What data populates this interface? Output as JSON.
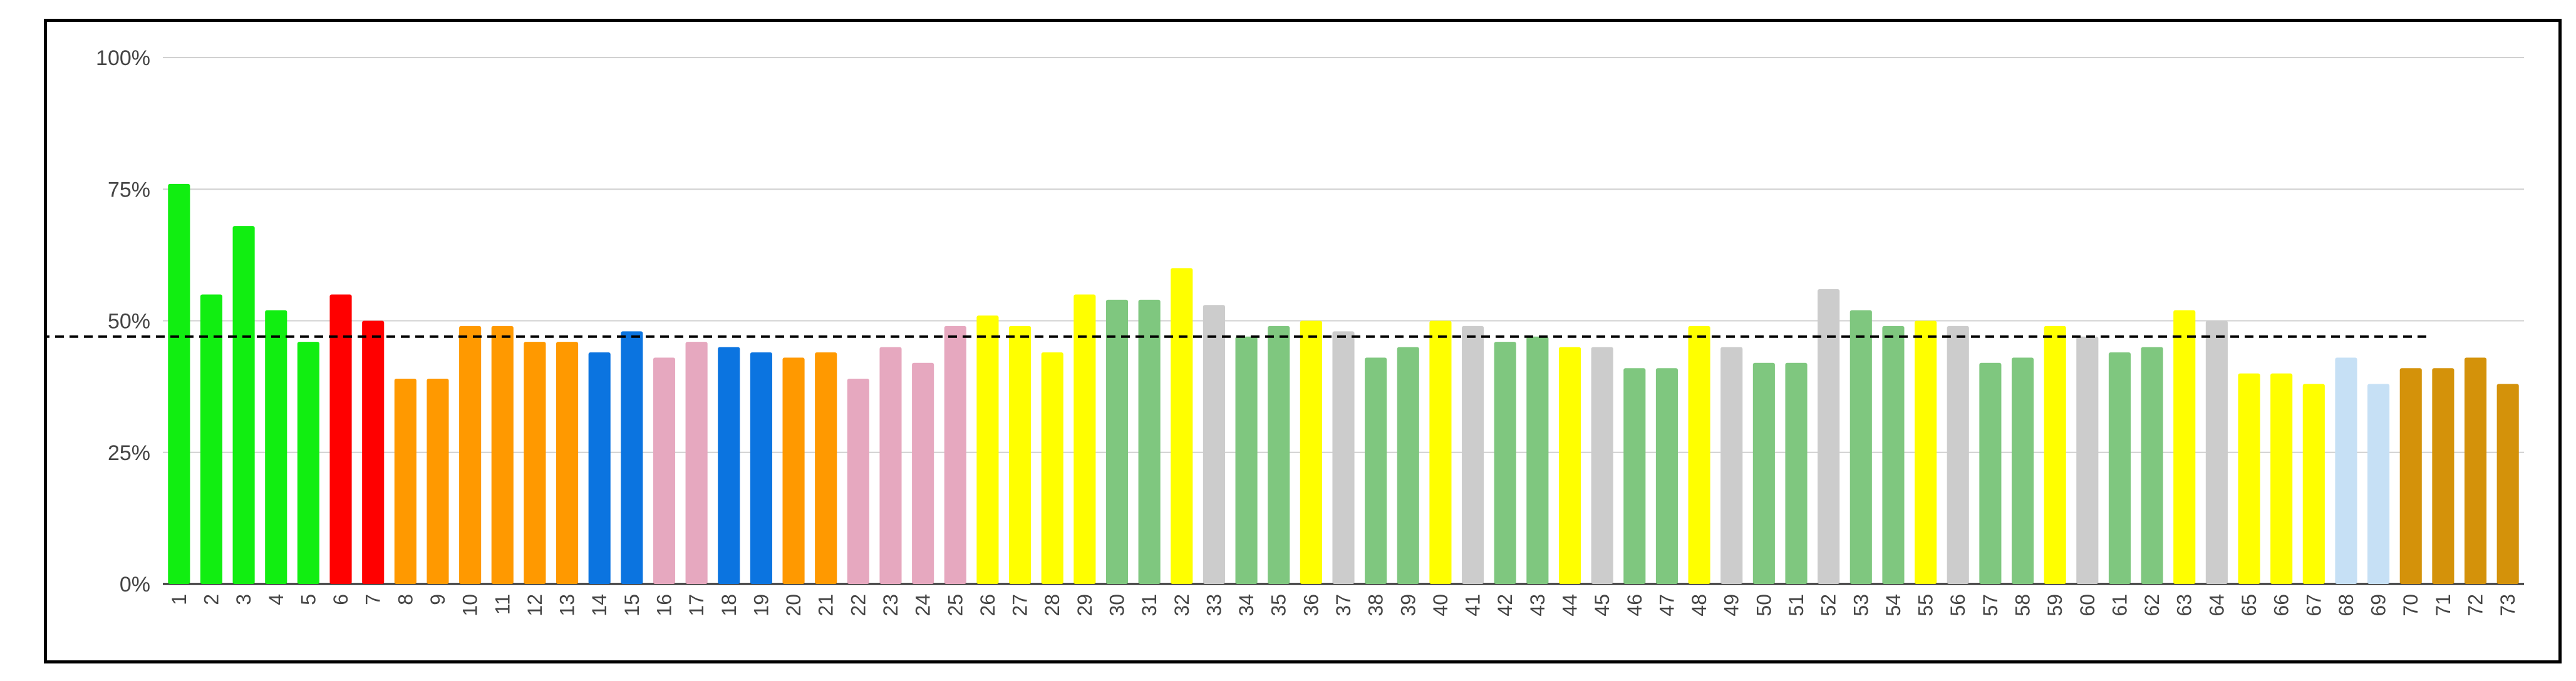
{
  "chart_data": {
    "type": "bar",
    "title": "",
    "xlabel": "",
    "ylabel": "",
    "ylim": [
      0,
      100
    ],
    "yticks": [
      "0%",
      "25%",
      "50%",
      "75%",
      "100%"
    ],
    "grid": true,
    "reference_line": {
      "value": 47,
      "style": "dashed",
      "color": "#000000"
    },
    "categories": [
      "1",
      "2",
      "3",
      "4",
      "5",
      "6",
      "7",
      "8",
      "9",
      "10",
      "11",
      "12",
      "13",
      "14",
      "15",
      "16",
      "17",
      "18",
      "19",
      "20",
      "21",
      "22",
      "23",
      "24",
      "25",
      "26",
      "27",
      "28",
      "29",
      "30",
      "31",
      "32",
      "33",
      "34",
      "35",
      "36",
      "37",
      "38",
      "39",
      "40",
      "41",
      "42",
      "43",
      "44",
      "45",
      "46",
      "47",
      "48",
      "49",
      "50",
      "51",
      "52",
      "53",
      "54",
      "55",
      "56",
      "57",
      "58",
      "59",
      "60",
      "61",
      "62",
      "63",
      "64",
      "65",
      "66",
      "67",
      "68",
      "69",
      "70",
      "71",
      "72",
      "73"
    ],
    "values": [
      76,
      55,
      68,
      52,
      46,
      55,
      50,
      39,
      39,
      49,
      49,
      46,
      46,
      44,
      48,
      43,
      46,
      45,
      44,
      43,
      44,
      39,
      45,
      42,
      49,
      51,
      49,
      44,
      55,
      54,
      54,
      60,
      53,
      47,
      49,
      50,
      48,
      43,
      45,
      50,
      49,
      46,
      47,
      45,
      45,
      41,
      41,
      49,
      45,
      42,
      42,
      56,
      52,
      49,
      50,
      49,
      42,
      43,
      49,
      47,
      44,
      45,
      52,
      50,
      40,
      40,
      38,
      43,
      38,
      41,
      41,
      43,
      38
    ],
    "colors": [
      "#11ee11",
      "#11ee11",
      "#11ee11",
      "#11ee11",
      "#11ee11",
      "#ff0000",
      "#ff0000",
      "#ff9900",
      "#ff9900",
      "#ff9900",
      "#ff9900",
      "#ff9900",
      "#ff9900",
      "#0b74e0",
      "#0b74e0",
      "#e6a8bf",
      "#e6a8bf",
      "#0b74e0",
      "#0b74e0",
      "#ff9900",
      "#ff9900",
      "#e6a8bf",
      "#e6a8bf",
      "#e6a8bf",
      "#e6a8bf",
      "#ffff00",
      "#ffff00",
      "#ffff00",
      "#ffff00",
      "#7fc77f",
      "#7fc77f",
      "#ffff00",
      "#cccccc",
      "#7fc77f",
      "#7fc77f",
      "#ffff00",
      "#cccccc",
      "#7fc77f",
      "#7fc77f",
      "#ffff00",
      "#cccccc",
      "#7fc77f",
      "#7fc77f",
      "#ffff00",
      "#cccccc",
      "#7fc77f",
      "#7fc77f",
      "#ffff00",
      "#cccccc",
      "#7fc77f",
      "#7fc77f",
      "#cccccc",
      "#7fc77f",
      "#7fc77f",
      "#ffff00",
      "#cccccc",
      "#7fc77f",
      "#7fc77f",
      "#ffff00",
      "#cccccc",
      "#7fc77f",
      "#7fc77f",
      "#ffff00",
      "#cccccc",
      "#ffff00",
      "#ffff00",
      "#ffff00",
      "#c6e0f5",
      "#c6e0f5",
      "#d4920a",
      "#d4920a",
      "#d4920a",
      "#d4920a"
    ]
  }
}
